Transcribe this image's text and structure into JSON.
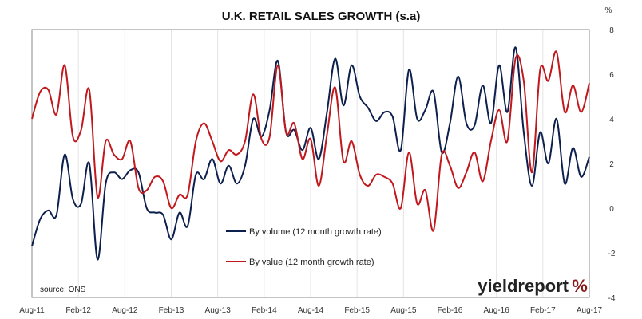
{
  "chart_data": {
    "type": "line",
    "title": "U.K. RETAIL SALES GROWTH (s.a)",
    "unit": "%",
    "xlabel": "",
    "ylabel": "",
    "ylim": [
      -4,
      8
    ],
    "y_ticks": [
      -4,
      -2,
      0,
      2,
      4,
      6,
      8
    ],
    "x_ticks": [
      "Aug-11",
      "Feb-12",
      "Aug-12",
      "Feb-13",
      "Aug-13",
      "Feb-14",
      "Aug-14",
      "Feb-15",
      "Aug-15",
      "Feb-16",
      "Aug-16",
      "Feb-17",
      "Aug-17"
    ],
    "grid": "vertical",
    "legend_placement": "center",
    "source": "source: ONS",
    "brand": {
      "text": "yieldreport",
      "symbol": "%"
    },
    "series": [
      {
        "name": "By volume (12 month growth rate)",
        "color": "#0d1f4d",
        "values": [
          -1.7,
          -0.5,
          -0.1,
          -0.3,
          2.4,
          0.4,
          0.2,
          2.0,
          -2.3,
          1.1,
          1.6,
          1.3,
          1.7,
          1.6,
          0.0,
          -0.2,
          -0.3,
          -1.4,
          -0.2,
          -0.8,
          1.5,
          1.3,
          2.2,
          1.1,
          1.9,
          1.1,
          1.9,
          4.0,
          3.2,
          4.4,
          6.6,
          3.4,
          3.5,
          2.6,
          3.6,
          2.2,
          4.3,
          6.7,
          4.6,
          6.4,
          5.0,
          4.5,
          3.9,
          4.3,
          4.1,
          2.6,
          6.2,
          4.0,
          4.4,
          5.2,
          2.5,
          3.8,
          5.9,
          3.8,
          3.7,
          5.5,
          3.8,
          6.4,
          4.3,
          7.2,
          3.4,
          1.0,
          3.4,
          2.0,
          4.0,
          1.1,
          2.7,
          1.4,
          2.3
        ]
      },
      {
        "name": "By value (12 month growth rate)",
        "color": "#c0181c",
        "values": [
          4.0,
          5.2,
          5.3,
          4.2,
          6.4,
          3.2,
          3.5,
          5.3,
          0.5,
          3.0,
          2.4,
          2.2,
          3.0,
          0.9,
          0.8,
          1.4,
          1.2,
          0.0,
          0.6,
          0.6,
          3.0,
          3.8,
          3.0,
          2.1,
          2.6,
          2.4,
          3.0,
          5.1,
          3.1,
          3.2,
          6.4,
          3.4,
          3.8,
          2.2,
          3.1,
          1.0,
          3.3,
          5.4,
          2.1,
          3.0,
          1.5,
          1.0,
          1.5,
          1.4,
          1.1,
          0.0,
          2.5,
          0.2,
          0.8,
          -1.0,
          2.4,
          1.9,
          0.9,
          1.6,
          2.5,
          1.2,
          3.0,
          4.4,
          3.0,
          6.7,
          5.7,
          1.6,
          6.2,
          5.7,
          7.0,
          4.3,
          5.5,
          4.3,
          5.6
        ]
      }
    ]
  }
}
